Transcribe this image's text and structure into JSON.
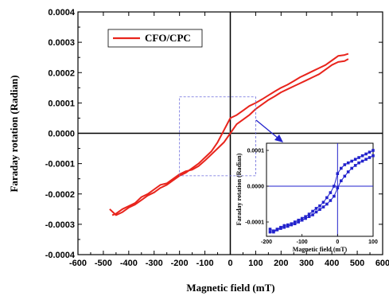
{
  "chart_data": [
    {
      "type": "line",
      "role": "main",
      "xlabel": "Magnetic field (mT)",
      "ylabel": "Faraday rotation (Radian)",
      "xlim": [
        -600,
        600
      ],
      "ylim": [
        -0.0004,
        0.0004
      ],
      "x_ticks": [
        -600,
        -500,
        -400,
        -300,
        -200,
        -100,
        0,
        100,
        200,
        300,
        400,
        500,
        600
      ],
      "y_ticks": [
        "-0.0004",
        "-0.0003",
        "-0.0002",
        "-0.0001",
        "0.0000",
        "0.0001",
        "0.0002",
        "0.0003",
        "0.0004"
      ],
      "y_tick_values": [
        -0.0004,
        -0.0003,
        -0.0002,
        -0.0001,
        0.0,
        0.0001,
        0.0002,
        0.0003,
        0.0004
      ],
      "legend_position": "top-left",
      "color": "#e8241c",
      "series": [
        {
          "name": "CFO/CPC",
          "branch": "upper",
          "x": [
            -475,
            -450,
            -425,
            -400,
            -375,
            -350,
            -325,
            -300,
            -275,
            -250,
            -225,
            -200,
            -175,
            -150,
            -125,
            -100,
            -75,
            -50,
            -25,
            0,
            25,
            50,
            75,
            100,
            125,
            150,
            175,
            200,
            225,
            250,
            275,
            300,
            325,
            350,
            375,
            400,
            425,
            450,
            465
          ],
          "y": [
            -0.00025,
            -0.00027,
            -0.00026,
            -0.000245,
            -0.000235,
            -0.00022,
            -0.000205,
            -0.000195,
            -0.00018,
            -0.00017,
            -0.000155,
            -0.00014,
            -0.00013,
            -0.000115,
            -0.0001,
            -8e-05,
            -6e-05,
            -3e-05,
            1e-05,
            5e-05,
            6e-05,
            7.5e-05,
            9e-05,
            0.0001,
            0.000112,
            0.000125,
            0.000138,
            0.00015,
            0.00016,
            0.000172,
            0.000185,
            0.000195,
            0.000205,
            0.000215,
            0.000225,
            0.00024,
            0.000255,
            0.000258,
            0.000262
          ]
        },
        {
          "name": "CFO/CPC",
          "branch": "lower",
          "x": [
            -465,
            -450,
            -425,
            -400,
            -375,
            -350,
            -325,
            -300,
            -275,
            -250,
            -225,
            -200,
            -175,
            -150,
            -125,
            -100,
            -75,
            -50,
            -25,
            0,
            25,
            50,
            75,
            100,
            125,
            150,
            175,
            200,
            225,
            250,
            275,
            300,
            325,
            350,
            375,
            400,
            425,
            450,
            465
          ],
          "y": [
            -0.00027,
            -0.000265,
            -0.00025,
            -0.00024,
            -0.00023,
            -0.00021,
            -0.0002,
            -0.000185,
            -0.00017,
            -0.000165,
            -0.00015,
            -0.000135,
            -0.000125,
            -0.00012,
            -0.000108,
            -9e-05,
            -7e-05,
            -5e-05,
            -3e-05,
            0.0,
            3e-05,
            4.5e-05,
            6e-05,
            8e-05,
            9.5e-05,
            0.00011,
            0.000122,
            0.000135,
            0.000145,
            0.000155,
            0.000165,
            0.000175,
            0.000185,
            0.000195,
            0.00021,
            0.000225,
            0.000235,
            0.000238,
            0.000245
          ]
        }
      ],
      "legend": [
        "CFO/CPC"
      ]
    },
    {
      "type": "line",
      "role": "inset",
      "xlabel": "Magnetic field (mT)",
      "ylabel": "Faraday rotation (Radian)",
      "xlim": [
        -200,
        100
      ],
      "ylim": [
        -0.00014,
        0.00012
      ],
      "x_ticks": [
        -200,
        -100,
        0,
        100
      ],
      "y_ticks": [
        "0.0001",
        "0.0000",
        "-0.0001"
      ],
      "y_tick_values": [
        0.0001,
        0.0,
        -0.0001
      ],
      "color": "#2222cc",
      "markers": "square",
      "series": [
        {
          "branch": "upper",
          "x": [
            -190,
            -180,
            -170,
            -160,
            -150,
            -140,
            -130,
            -120,
            -110,
            -100,
            -90,
            -80,
            -70,
            -60,
            -50,
            -40,
            -30,
            -20,
            -10,
            0,
            10,
            20,
            30,
            40,
            50,
            60,
            70,
            80,
            90,
            100
          ],
          "y": [
            -0.00012,
            -0.000125,
            -0.00012,
            -0.000115,
            -0.00011,
            -0.000108,
            -0.000105,
            -0.0001,
            -9.5e-05,
            -9e-05,
            -8.5e-05,
            -7.8e-05,
            -7e-05,
            -6.2e-05,
            -5.5e-05,
            -4.5e-05,
            -3.2e-05,
            -1.8e-05,
            0.0,
            3.5e-05,
            5e-05,
            6e-05,
            6.5e-05,
            7e-05,
            7.5e-05,
            8e-05,
            8.5e-05,
            9e-05,
            9.5e-05,
            0.0001
          ]
        },
        {
          "branch": "lower",
          "x": [
            -190,
            -180,
            -170,
            -160,
            -150,
            -140,
            -130,
            -120,
            -110,
            -100,
            -90,
            -80,
            -70,
            -60,
            -50,
            -40,
            -30,
            -20,
            -10,
            0,
            10,
            20,
            30,
            40,
            50,
            60,
            70,
            80,
            90,
            100
          ],
          "y": [
            -0.000128,
            -0.000128,
            -0.000122,
            -0.000118,
            -0.000115,
            -0.000112,
            -0.000108,
            -0.000105,
            -0.0001,
            -9.5e-05,
            -9e-05,
            -8.5e-05,
            -8e-05,
            -7.2e-05,
            -6.5e-05,
            -5.8e-05,
            -5e-05,
            -4e-05,
            -2.8e-05,
            -5e-06,
            1.5e-05,
            2.8e-05,
            4e-05,
            5e-05,
            5.8e-05,
            6.5e-05,
            7e-05,
            7.5e-05,
            8e-05,
            8.5e-05
          ]
        }
      ]
    }
  ]
}
